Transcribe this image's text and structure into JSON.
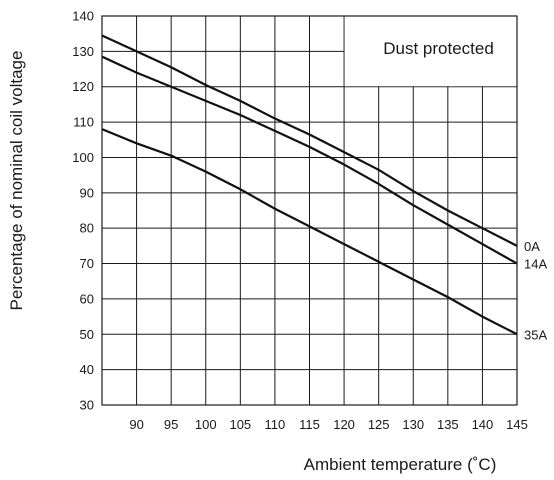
{
  "chart_data": {
    "type": "line",
    "title": "",
    "annotation": "Dust protected",
    "xlabel": "Ambient temperature (˚C)",
    "ylabel": "Percentage of nominal coil voltage",
    "xlim": [
      85,
      145
    ],
    "ylim": [
      30,
      140
    ],
    "xticks": [
      90,
      95,
      100,
      105,
      110,
      115,
      120,
      125,
      130,
      135,
      140,
      145
    ],
    "yticks": [
      30,
      40,
      50,
      60,
      70,
      80,
      90,
      100,
      110,
      120,
      130,
      140
    ],
    "grid": true,
    "series": [
      {
        "name": "0A",
        "x": [
          85,
          90,
          95,
          100,
          105,
          110,
          115,
          120,
          125,
          130,
          135,
          140,
          145
        ],
        "y": [
          134.5,
          130,
          125.5,
          120.5,
          116,
          111,
          106.5,
          101.5,
          96.5,
          90.5,
          85,
          80,
          75
        ]
      },
      {
        "name": "14A",
        "x": [
          85,
          90,
          95,
          100,
          105,
          110,
          115,
          120,
          125,
          130,
          135,
          140,
          145
        ],
        "y": [
          128.5,
          124,
          120,
          116,
          112,
          107.5,
          103,
          98,
          92.5,
          86.5,
          81,
          75.5,
          70
        ]
      },
      {
        "name": "35A",
        "x": [
          85,
          90,
          95,
          100,
          105,
          110,
          115,
          120,
          125,
          130,
          135,
          140,
          145
        ],
        "y": [
          108,
          104,
          100.5,
          96,
          91,
          85.5,
          80.5,
          75.5,
          70.5,
          65.5,
          60.5,
          55,
          50
        ]
      }
    ]
  }
}
